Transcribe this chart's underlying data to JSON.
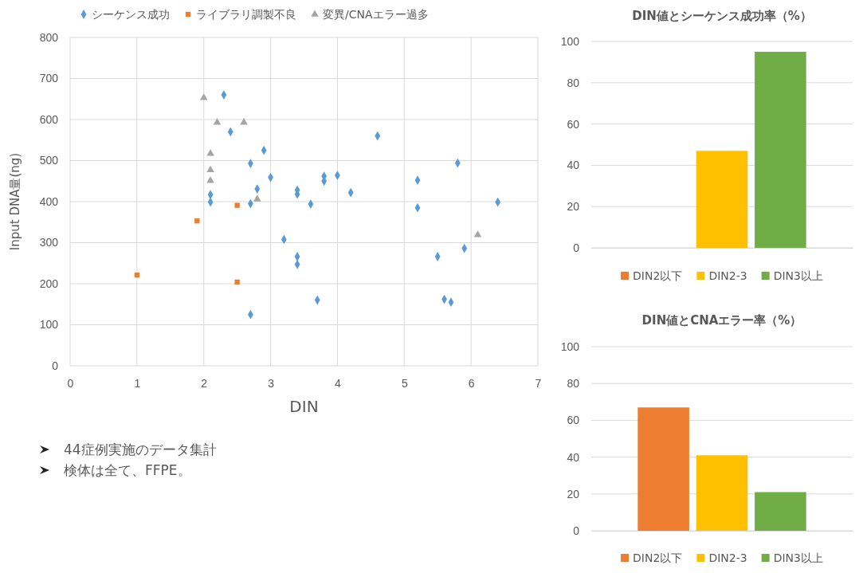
{
  "chart_data": [
    {
      "type": "scatter",
      "xlabel": "DIN",
      "ylabel": "Input  DNA量(ng)",
      "xlim": [
        0,
        7
      ],
      "xticks": [
        0,
        1,
        2,
        3,
        4,
        5,
        6,
        7
      ],
      "ylim": [
        0,
        800
      ],
      "yticks": [
        0,
        100,
        200,
        300,
        400,
        500,
        600,
        700,
        800
      ],
      "grid": true,
      "legend": "top",
      "series": [
        {
          "name": "シーケンス成功",
          "color": "#5b9bd5",
          "marker": "diamond",
          "x": [
            2.3,
            2.4,
            2.9,
            2.7,
            3.0,
            2.8,
            3.4,
            3.4,
            2.1,
            2.1,
            3.6,
            2.7,
            3.2,
            3.4,
            3.4,
            3.7,
            2.7,
            4.6,
            5.8,
            5.2,
            3.8,
            3.8,
            4.0,
            4.2,
            5.2,
            6.4,
            5.9,
            5.5,
            5.6,
            5.7
          ],
          "values": [
            660,
            570,
            525,
            493,
            459,
            431,
            428,
            418,
            417,
            399,
            394,
            395,
            308,
            266,
            247,
            160,
            125,
            560,
            494,
            452,
            462,
            450,
            464,
            422,
            385,
            399,
            286,
            266,
            162,
            155
          ]
        },
        {
          "name": "ライブラリ調製不良",
          "color": "#ed7d31",
          "marker": "square",
          "x": [
            1.0,
            1.9,
            2.5,
            2.5
          ],
          "values": [
            221,
            353,
            391,
            204
          ]
        },
        {
          "name": "変異/CNAエラー過多",
          "color": "#a5a5a5",
          "marker": "triangle",
          "x": [
            2.0,
            2.2,
            2.6,
            2.1,
            2.1,
            2.1,
            2.8,
            6.1
          ],
          "values": [
            653,
            593,
            593,
            517,
            477,
            451,
            406,
            319
          ]
        }
      ],
      "annotations": [
        "44症例実施のデータ集計",
        "検体は全て、FFPE。"
      ]
    },
    {
      "type": "bar",
      "title": "DIN値とシーケンス成功率（%）",
      "categories": [
        null
      ],
      "ylim": [
        0,
        100
      ],
      "yticks": [
        0,
        20,
        40,
        60,
        80,
        100
      ],
      "grid": "y",
      "legend": "bottom",
      "series": [
        {
          "name": "DIN2以下",
          "color": "#ed7d31",
          "values": [
            0
          ]
        },
        {
          "name": "DIN2-3",
          "color": "#ffc000",
          "values": [
            47
          ]
        },
        {
          "name": "DIN3以上",
          "color": "#70ad47",
          "values": [
            95
          ]
        }
      ]
    },
    {
      "type": "bar",
      "title": "DIN値とCNAエラー率（%）",
      "categories": [
        null
      ],
      "ylim": [
        0,
        100
      ],
      "yticks": [
        0,
        20,
        40,
        60,
        80,
        100
      ],
      "grid": "y",
      "legend": "bottom",
      "series": [
        {
          "name": "DIN2以下",
          "color": "#ed7d31",
          "values": [
            67
          ]
        },
        {
          "name": "DIN2-3",
          "color": "#ffc000",
          "values": [
            41
          ]
        },
        {
          "name": "DIN3以上",
          "color": "#70ad47",
          "values": [
            21
          ]
        }
      ]
    }
  ]
}
